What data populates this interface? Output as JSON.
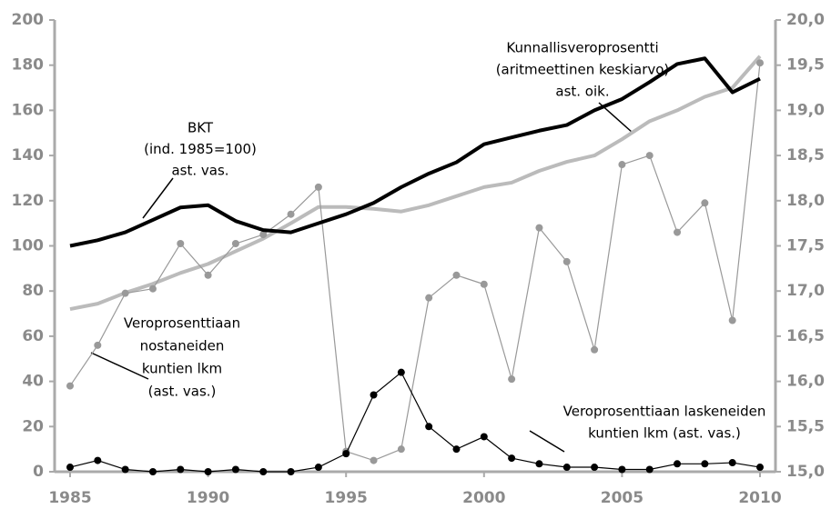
{
  "chart_data": {
    "type": "line",
    "x": [
      1985,
      1986,
      1987,
      1988,
      1989,
      1990,
      1991,
      1992,
      1993,
      1994,
      1995,
      1996,
      1997,
      1998,
      1999,
      2000,
      2001,
      2002,
      2003,
      2004,
      2005,
      2006,
      2007,
      2008,
      2009,
      2010
    ],
    "xlim": [
      1985,
      2010
    ],
    "xticks": [
      1985,
      1990,
      1995,
      2000,
      2005,
      2010
    ],
    "ylim": [
      0,
      200
    ],
    "yticks": [
      0,
      20,
      40,
      60,
      80,
      100,
      120,
      140,
      160,
      180,
      200
    ],
    "y2lim": [
      15,
      20
    ],
    "y2ticks": [
      {
        "value": 15,
        "label": "15,0"
      },
      {
        "value": 15.5,
        "label": "15,5"
      },
      {
        "value": 16,
        "label": "16,0"
      },
      {
        "value": 16.5,
        "label": "16,5"
      },
      {
        "value": 17,
        "label": "17,0"
      },
      {
        "value": 17.5,
        "label": "17,5"
      },
      {
        "value": 18,
        "label": "18,0"
      },
      {
        "value": 18.5,
        "label": "18,5"
      },
      {
        "value": 19,
        "label": "19,0"
      },
      {
        "value": 19.5,
        "label": "19,5"
      },
      {
        "value": 20,
        "label": "20,0"
      }
    ],
    "series": [
      {
        "color": "#bbbbbb",
        "width": 4,
        "markers": false,
        "axis": "y2",
        "values": [
          16.8,
          16.86,
          16.98,
          17.08,
          17.2,
          17.3,
          17.44,
          17.58,
          17.75,
          17.93,
          17.93,
          17.91,
          17.88,
          17.95,
          18.05,
          18.15,
          18.2,
          18.33,
          18.43,
          18.5,
          18.68,
          18.88,
          19.0,
          19.15,
          19.25,
          19.6
        ]
      },
      {
        "color": "#999999",
        "width": 1.2,
        "markers": true,
        "values": [
          38,
          56,
          79,
          81,
          101,
          87,
          101,
          105,
          114,
          126,
          9,
          5,
          10,
          77,
          87,
          83,
          41,
          108,
          93,
          54,
          136,
          140,
          106,
          119,
          67,
          181
        ]
      },
      {
        "color": "#000000",
        "width": 4,
        "markers": false,
        "values": [
          100,
          102.5,
          106,
          111.5,
          117,
          118,
          111,
          107,
          106,
          110,
          114,
          119,
          126,
          132,
          137,
          145,
          148,
          151,
          153.5,
          160,
          165,
          172.5,
          180.5,
          183,
          168,
          174
        ]
      },
      {
        "color": "#000000",
        "width": 1.2,
        "markers": true,
        "values": [
          2,
          5,
          1,
          0,
          1,
          0,
          1,
          0,
          0,
          2,
          8,
          34,
          44,
          20,
          10,
          15.5,
          6,
          3.5,
          2,
          2,
          1,
          1,
          3.5,
          3.5,
          4,
          2
        ]
      }
    ],
    "annotations": [
      {
        "lines": [
          "BKT",
          "(ind. 1985=100)",
          "ast. vas."
        ]
      },
      {
        "lines": [
          "Kunnallisveroprosentti",
          "(aritmeettinen keskiarvo)",
          "ast. oik."
        ]
      },
      {
        "lines": [
          "Veroprosenttiaan",
          "nostaneiden",
          "kuntien lkm",
          "(ast. vas.)"
        ]
      },
      {
        "lines": [
          "Veroprosenttiaan laskeneiden",
          "kuntien lkm (ast. vas.)"
        ]
      }
    ]
  }
}
